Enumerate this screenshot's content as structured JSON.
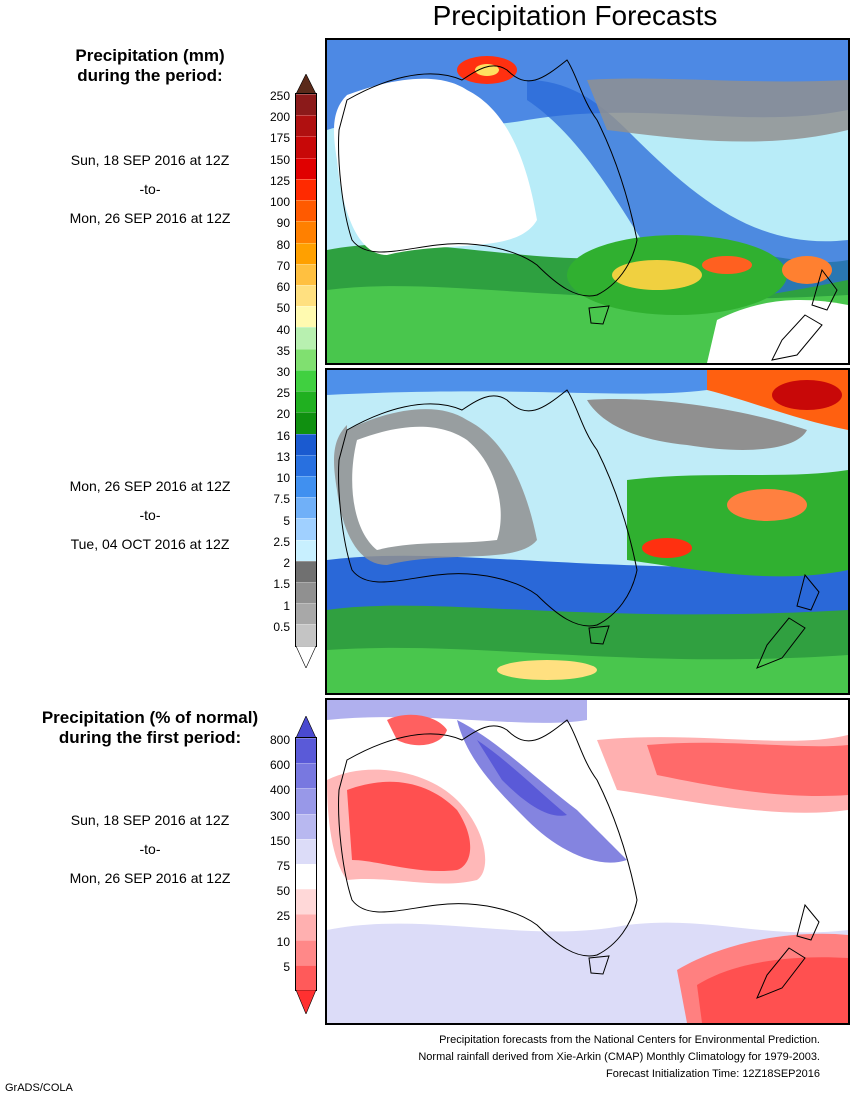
{
  "title": "Precipitation Forecasts",
  "amount_legend": {
    "heading_line1": "Precipitation (mm)",
    "heading_line2": "during the period:",
    "labels": [
      "250",
      "200",
      "175",
      "150",
      "125",
      "100",
      "90",
      "80",
      "70",
      "60",
      "50",
      "40",
      "35",
      "30",
      "25",
      "20",
      "16",
      "13",
      "10",
      "7.5",
      "5",
      "2.5",
      "2",
      "1.5",
      "1",
      "0.5"
    ],
    "colors": [
      "#8b1a1a",
      "#b01010",
      "#c80808",
      "#e00000",
      "#ff2a00",
      "#ff5a00",
      "#ff8000",
      "#ffa000",
      "#ffc040",
      "#ffe080",
      "#fffab0",
      "#b8f0b0",
      "#80e070",
      "#40d040",
      "#20b020",
      "#109010",
      "#1a5ad0",
      "#2870e0",
      "#4090f0",
      "#70b0f8",
      "#a0d0ff",
      "#c8f0ff",
      "#707070",
      "#909090",
      "#a8a8a8",
      "#c4c4c4"
    ],
    "top_arrow_color": "#5a2a1a",
    "bottom_arrow_color": "#ffffff"
  },
  "period1": {
    "from": "Sun, 18 SEP 2016 at 12Z",
    "sep": "-to-",
    "to": "Mon, 26 SEP 2016 at 12Z"
  },
  "period2": {
    "from": "Mon, 26 SEP 2016 at 12Z",
    "sep": "-to-",
    "to": "Tue, 04 OCT 2016 at 12Z"
  },
  "anomaly_legend": {
    "heading_line1": "Precipitation (% of normal)",
    "heading_line2": "during the first period:",
    "labels": [
      "800",
      "600",
      "400",
      "300",
      "150",
      "75",
      "50",
      "25",
      "10",
      "5"
    ],
    "colors": [
      "#5a5ad8",
      "#7878e0",
      "#9898e8",
      "#b8b8f0",
      "#dcdcf8",
      "#ffffff",
      "#ffd8d8",
      "#ffb0b0",
      "#ff8888",
      "#ff5a5a"
    ],
    "top_arrow_color": "#4a4ad0",
    "bottom_arrow_color": "#ff3030"
  },
  "period3": {
    "from": "Sun, 18 SEP 2016 at 12Z",
    "sep": "-to-",
    "to": "Mon, 26 SEP 2016 at 12Z"
  },
  "credits": [
    "Precipitation forecasts from the National Centers for Environmental Prediction.",
    "Normal rainfall derived from Xie-Arkin (CMAP) Monthly Climatology for 1979-2003.",
    "Forecast Initialization Time: 12Z18SEP2016"
  ],
  "footer": "GrADS/COLA"
}
